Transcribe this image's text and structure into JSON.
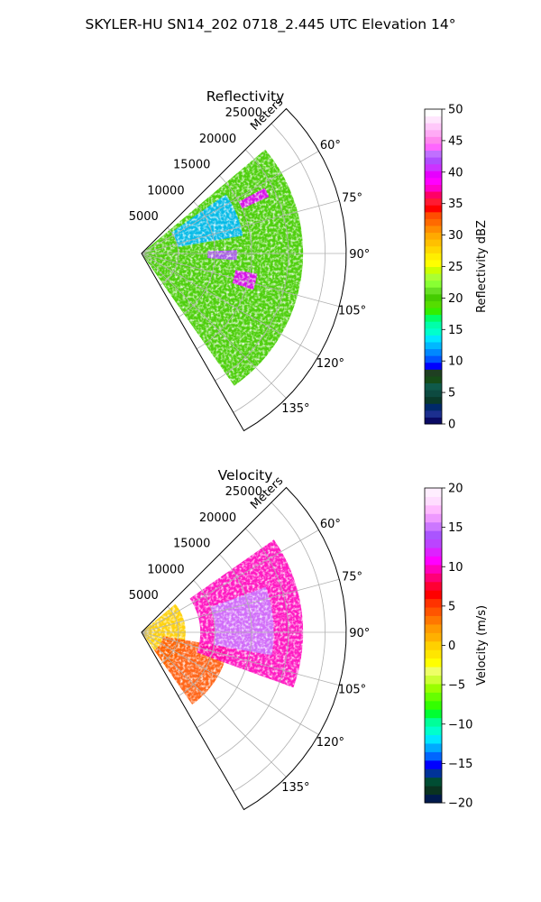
{
  "figure": {
    "suptitle": "SKYLER-HU  SN14_202  0718_2.445 UTC Elevation 14°"
  },
  "chart_data": [
    {
      "type": "heatmap",
      "title": "Reflectivity",
      "projection": "polar sector",
      "radial_label": "Meters",
      "radial_ticks": [
        5000,
        10000,
        15000,
        20000,
        25000
      ],
      "radial_tick_labels": [
        "5000",
        "10000",
        "15000",
        "20000",
        "25000"
      ],
      "azimuth_range": [
        45,
        150
      ],
      "azimuth_ticks": [
        60,
        75,
        90,
        105,
        120,
        135
      ],
      "azimuth_tick_labels": [
        "60°",
        "75°",
        "90°",
        "105°",
        "120°",
        "135°"
      ],
      "grid": true,
      "colorbar": {
        "label": "Reflectivity dBZ",
        "range": [
          0,
          50
        ],
        "ticks": [
          0,
          5,
          10,
          15,
          20,
          25,
          30,
          35,
          40,
          45,
          50
        ],
        "tick_labels": [
          "0",
          "5",
          "10",
          "15",
          "20",
          "25",
          "30",
          "35",
          "40",
          "45",
          "50"
        ],
        "colormap": "pyart_NWSRef"
      },
      "echo_regions": [
        {
          "az": [
            50,
            145
          ],
          "range_m": [
            0,
            22000
          ],
          "dbz": 20
        },
        {
          "az": [
            55,
            80
          ],
          "range_m": [
            5000,
            14000
          ],
          "dbz": 12
        },
        {
          "az": [
            62,
            66
          ],
          "range_m": [
            15000,
            19000
          ],
          "dbz": 40
        },
        {
          "az": [
            88,
            94
          ],
          "range_m": [
            9000,
            13000
          ],
          "dbz": 42
        },
        {
          "az": [
            100,
            108
          ],
          "range_m": [
            13000,
            16000
          ],
          "dbz": 40
        }
      ]
    },
    {
      "type": "heatmap",
      "title": "Velocity",
      "projection": "polar sector",
      "radial_label": "Meters",
      "radial_ticks": [
        5000,
        10000,
        15000,
        20000,
        25000
      ],
      "radial_tick_labels": [
        "5000",
        "10000",
        "15000",
        "20000",
        "25000"
      ],
      "azimuth_range": [
        45,
        150
      ],
      "azimuth_ticks": [
        60,
        75,
        90,
        105,
        120,
        135
      ],
      "azimuth_tick_labels": [
        "60°",
        "75°",
        "90°",
        "105°",
        "120°",
        "135°"
      ],
      "grid": true,
      "colorbar": {
        "label": "Velocity (m/s)",
        "range": [
          -20,
          20
        ],
        "ticks": [
          -20,
          -15,
          -10,
          -5,
          0,
          5,
          10,
          15,
          20
        ],
        "tick_labels": [
          "−20",
          "−15",
          "−10",
          "−5",
          "0",
          "5",
          "10",
          "15",
          "20"
        ],
        "colormap": "pyart_NWSVel"
      },
      "echo_regions": [
        {
          "az": [
            50,
            145
          ],
          "range_m": [
            0,
            6000
          ],
          "velocity": 0
        },
        {
          "az": [
            100,
            145
          ],
          "range_m": [
            3000,
            12000
          ],
          "velocity": 4
        },
        {
          "az": [
            55,
            110
          ],
          "range_m": [
            8000,
            22000
          ],
          "velocity": 10
        },
        {
          "az": [
            70,
            100
          ],
          "range_m": [
            10000,
            18000
          ],
          "velocity": 15
        }
      ]
    }
  ],
  "colors": {
    "grid": "#b0b0b0",
    "reflectivity_scale": [
      "#0a0a64",
      "#1c2f8f",
      "#00296b",
      "#0a3a2a",
      "#0d4a40",
      "#0f5a4a",
      "#164c18",
      "#1f3f22",
      "#0000ff",
      "#0055ff",
      "#0088ff",
      "#00b8ff",
      "#00e6ff",
      "#00ffcc",
      "#00ffaa",
      "#00ff66",
      "#33ee00",
      "#55dd00",
      "#44cc00",
      "#66e022",
      "#88ff33",
      "#aaff33",
      "#ccff00",
      "#ffff00",
      "#ffee00",
      "#ffd700",
      "#ffc000",
      "#ffaa00",
      "#ff8c00",
      "#ff6a00",
      "#ff4d00",
      "#ff0000",
      "#ff1a33",
      "#ff0066",
      "#ff00cc",
      "#ff00ff",
      "#e600ff",
      "#cc33ff",
      "#b04dff",
      "#c070ff",
      "#ff66ff",
      "#ff88ee",
      "#ffaaf5",
      "#ffc8fa",
      "#ffe6fd",
      "#ffffff"
    ],
    "velocity_scale": [
      "#001a4d",
      "#0a3320",
      "#004d33",
      "#003399",
      "#0000ff",
      "#0066ff",
      "#00aaff",
      "#00e6ff",
      "#00ffcc",
      "#00ff99",
      "#00ff33",
      "#33ff00",
      "#66ff00",
      "#99ff00",
      "#ccff33",
      "#eeff66",
      "#ffff00",
      "#ffe600",
      "#ffd000",
      "#ffb000",
      "#ff9900",
      "#ff7700",
      "#ff5500",
      "#ff3300",
      "#ff0000",
      "#ff0033",
      "#ff0077",
      "#ff00bb",
      "#ff00ff",
      "#dd22ff",
      "#bb44ff",
      "#aa55ff",
      "#cc77ff",
      "#ee99ff",
      "#ffbbff",
      "#ffddff",
      "#ffeeff"
    ]
  }
}
